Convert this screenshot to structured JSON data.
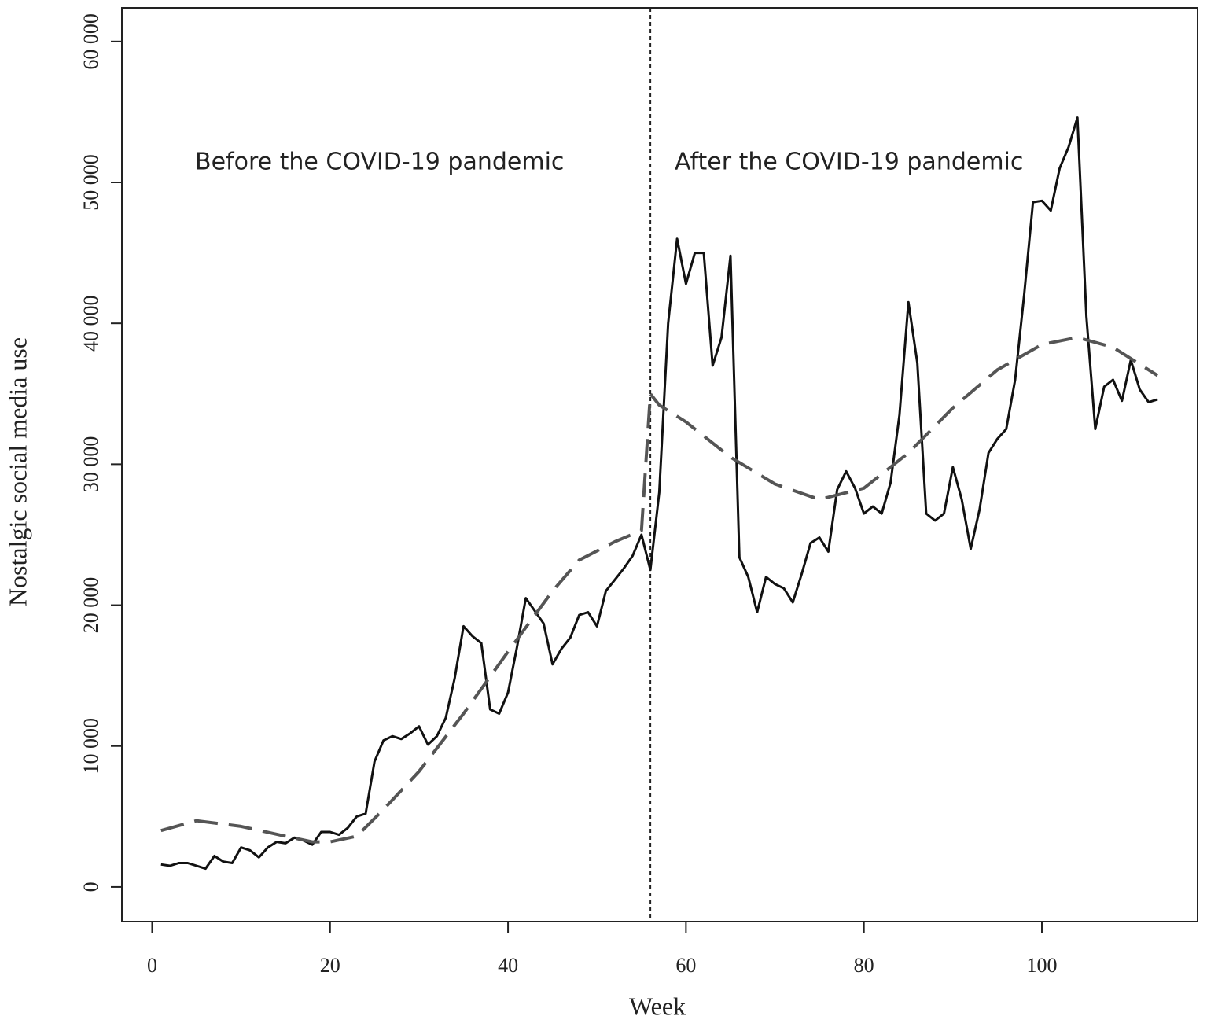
{
  "chart_data": {
    "type": "line",
    "annotations": [
      "Before the COVID-19 pandemic",
      "After the COVID-19 pandemic"
    ],
    "xlabel": "Week",
    "ylabel": "Nostalgic social media use",
    "xlim": [
      -3.4,
      117.5
    ],
    "ylim": [
      -2460,
      62390
    ],
    "xticks": [
      0,
      20,
      40,
      60,
      80,
      100
    ],
    "yticks": [
      0,
      {
        "value": 10000,
        "label": "10 000"
      },
      {
        "value": 20000,
        "label": "20 000"
      },
      {
        "value": 30000,
        "label": "30 000"
      },
      {
        "value": 40000,
        "label": "40 000"
      },
      {
        "value": 50000,
        "label": "50 000"
      },
      {
        "value": 60000,
        "label": "60 000"
      }
    ],
    "divider_x": 56,
    "series": [
      {
        "color": "#111111",
        "dashed": false,
        "x": [
          1,
          2,
          3,
          4,
          5,
          6,
          7,
          8,
          9,
          10,
          11,
          12,
          13,
          14,
          15,
          16,
          17,
          18,
          19,
          20,
          21,
          22,
          23,
          24,
          25,
          26,
          27,
          28,
          29,
          30,
          31,
          32,
          33,
          34,
          35,
          36,
          37,
          38,
          39,
          40,
          41,
          42,
          43,
          44,
          45,
          46,
          47,
          48,
          49,
          50,
          51,
          52,
          53,
          54,
          55,
          56,
          57,
          58,
          59,
          60,
          61,
          62,
          63,
          64,
          65,
          66,
          67,
          68,
          69,
          70,
          71,
          72,
          73,
          74,
          75,
          76,
          77,
          78,
          79,
          80,
          81,
          82,
          83,
          84,
          85,
          86,
          87,
          88,
          89,
          90,
          91,
          92,
          93,
          94,
          95,
          96,
          97,
          98,
          99,
          100,
          101,
          102,
          103,
          104,
          105,
          106,
          107,
          108,
          109,
          110,
          111,
          112,
          113
        ],
        "values": [
          1600,
          1500,
          1700,
          1700,
          1500,
          1300,
          2200,
          1800,
          1700,
          2800,
          2600,
          2100,
          2800,
          3200,
          3100,
          3500,
          3300,
          3000,
          3900,
          3900,
          3700,
          4200,
          5000,
          5200,
          8900,
          10400,
          10700,
          10500,
          10900,
          11400,
          10100,
          10700,
          12000,
          14800,
          18500,
          17800,
          17300,
          12600,
          12300,
          13800,
          17000,
          20500,
          19600,
          18700,
          15800,
          16900,
          17700,
          19300,
          19500,
          18500,
          21000,
          21800,
          22600,
          23500,
          25000,
          22500,
          28000,
          40000,
          46000,
          42800,
          45000,
          45000,
          37000,
          39000,
          44800,
          23400,
          22000,
          19500,
          22000,
          21500,
          21200,
          20200,
          22200,
          24400,
          24800,
          23800,
          28200,
          29500,
          28300,
          26500,
          27000,
          26500,
          28700,
          33500,
          41500,
          37200,
          26500,
          26000,
          26500,
          29800,
          27500,
          24000,
          26800,
          30800,
          31800,
          32500,
          36000,
          42000,
          48600,
          48700,
          48000,
          51000,
          52500,
          54600,
          40500,
          32500,
          35500,
          36000,
          34500,
          37400,
          35300,
          34400,
          34600
        ]
      },
      {
        "color": "#555555",
        "dashed": true,
        "x": [
          1,
          5,
          10,
          15,
          18,
          20,
          23,
          26,
          30,
          35,
          40,
          45,
          48,
          52,
          55,
          56,
          57,
          60,
          65,
          70,
          75,
          80,
          85,
          90,
          95,
          100,
          104,
          108,
          113
        ],
        "values": [
          4000,
          4700,
          4300,
          3600,
          3200,
          3200,
          3600,
          5500,
          8200,
          12300,
          16700,
          21000,
          23200,
          24500,
          25300,
          35000,
          34200,
          33000,
          30500,
          28600,
          27500,
          28300,
          30800,
          34000,
          36700,
          38500,
          39000,
          38300,
          36300
        ]
      }
    ]
  }
}
